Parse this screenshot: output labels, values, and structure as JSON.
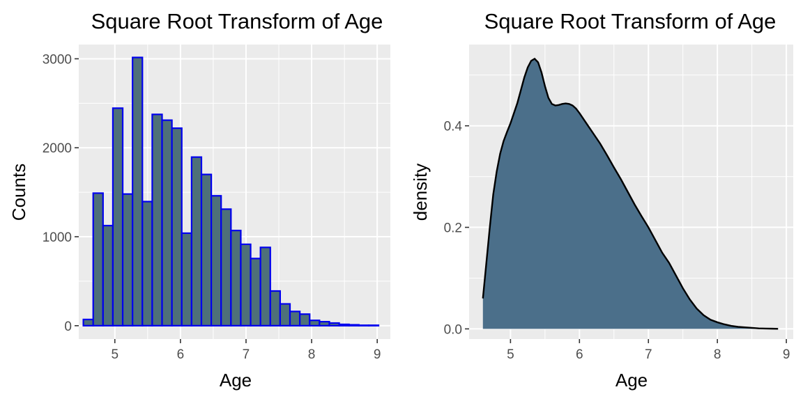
{
  "chart_data": [
    {
      "type": "bar",
      "title": "Square Root Transform of Age",
      "xlabel": "Age",
      "ylabel": "Counts",
      "xlim": [
        4.45,
        9.2
      ],
      "ylim": [
        -150,
        3160
      ],
      "bin_width": 0.15,
      "bin_starts": [
        4.52,
        4.67,
        4.82,
        4.97,
        5.12,
        5.27,
        5.42,
        5.57,
        5.72,
        5.87,
        6.02,
        6.17,
        6.32,
        6.47,
        6.62,
        6.77,
        6.92,
        7.07,
        7.22,
        7.37,
        7.52,
        7.67,
        7.82,
        7.97,
        8.12,
        8.27,
        8.42,
        8.57,
        8.72,
        8.87
      ],
      "values": [
        70,
        1490,
        1125,
        2445,
        1480,
        3015,
        1395,
        2375,
        2310,
        2220,
        1040,
        1895,
        1700,
        1460,
        1310,
        1070,
        915,
        755,
        880,
        390,
        245,
        160,
        130,
        60,
        45,
        30,
        15,
        10,
        5,
        5
      ],
      "x_ticks": [
        5,
        6,
        7,
        8,
        9
      ],
      "y_ticks": [
        0,
        1000,
        2000,
        3000
      ],
      "grid": true
    },
    {
      "type": "area",
      "title": "Square Root Transform of Age",
      "xlabel": "Age",
      "ylabel": "density",
      "xlim": [
        4.4,
        9.1
      ],
      "ylim": [
        -0.02,
        0.56
      ],
      "x": [
        4.6,
        4.65,
        4.7,
        4.75,
        4.8,
        4.85,
        4.9,
        4.95,
        5.0,
        5.05,
        5.1,
        5.15,
        5.2,
        5.25,
        5.3,
        5.35,
        5.4,
        5.45,
        5.5,
        5.55,
        5.6,
        5.65,
        5.7,
        5.75,
        5.8,
        5.85,
        5.9,
        5.95,
        6.0,
        6.1,
        6.2,
        6.3,
        6.4,
        6.5,
        6.6,
        6.7,
        6.8,
        6.9,
        7.0,
        7.1,
        7.2,
        7.3,
        7.4,
        7.5,
        7.6,
        7.7,
        7.8,
        7.9,
        8.0,
        8.1,
        8.2,
        8.3,
        8.4,
        8.5,
        8.6,
        8.7,
        8.8,
        8.88
      ],
      "y": [
        0.06,
        0.13,
        0.2,
        0.265,
        0.31,
        0.345,
        0.37,
        0.388,
        0.405,
        0.425,
        0.445,
        0.47,
        0.495,
        0.515,
        0.528,
        0.532,
        0.525,
        0.505,
        0.478,
        0.455,
        0.443,
        0.44,
        0.441,
        0.443,
        0.444,
        0.443,
        0.44,
        0.434,
        0.425,
        0.405,
        0.385,
        0.365,
        0.342,
        0.318,
        0.295,
        0.27,
        0.245,
        0.222,
        0.2,
        0.175,
        0.15,
        0.13,
        0.105,
        0.08,
        0.058,
        0.04,
        0.027,
        0.018,
        0.013,
        0.009,
        0.006,
        0.004,
        0.003,
        0.002,
        0.001,
        0.0007,
        0.0004,
        0.0002
      ],
      "x_ticks": [
        5,
        6,
        7,
        8,
        9
      ],
      "y_ticks": [
        0.0,
        0.2,
        0.4
      ],
      "y_tick_labels": [
        "0.0",
        "0.2",
        "0.4"
      ],
      "grid": true
    }
  ]
}
